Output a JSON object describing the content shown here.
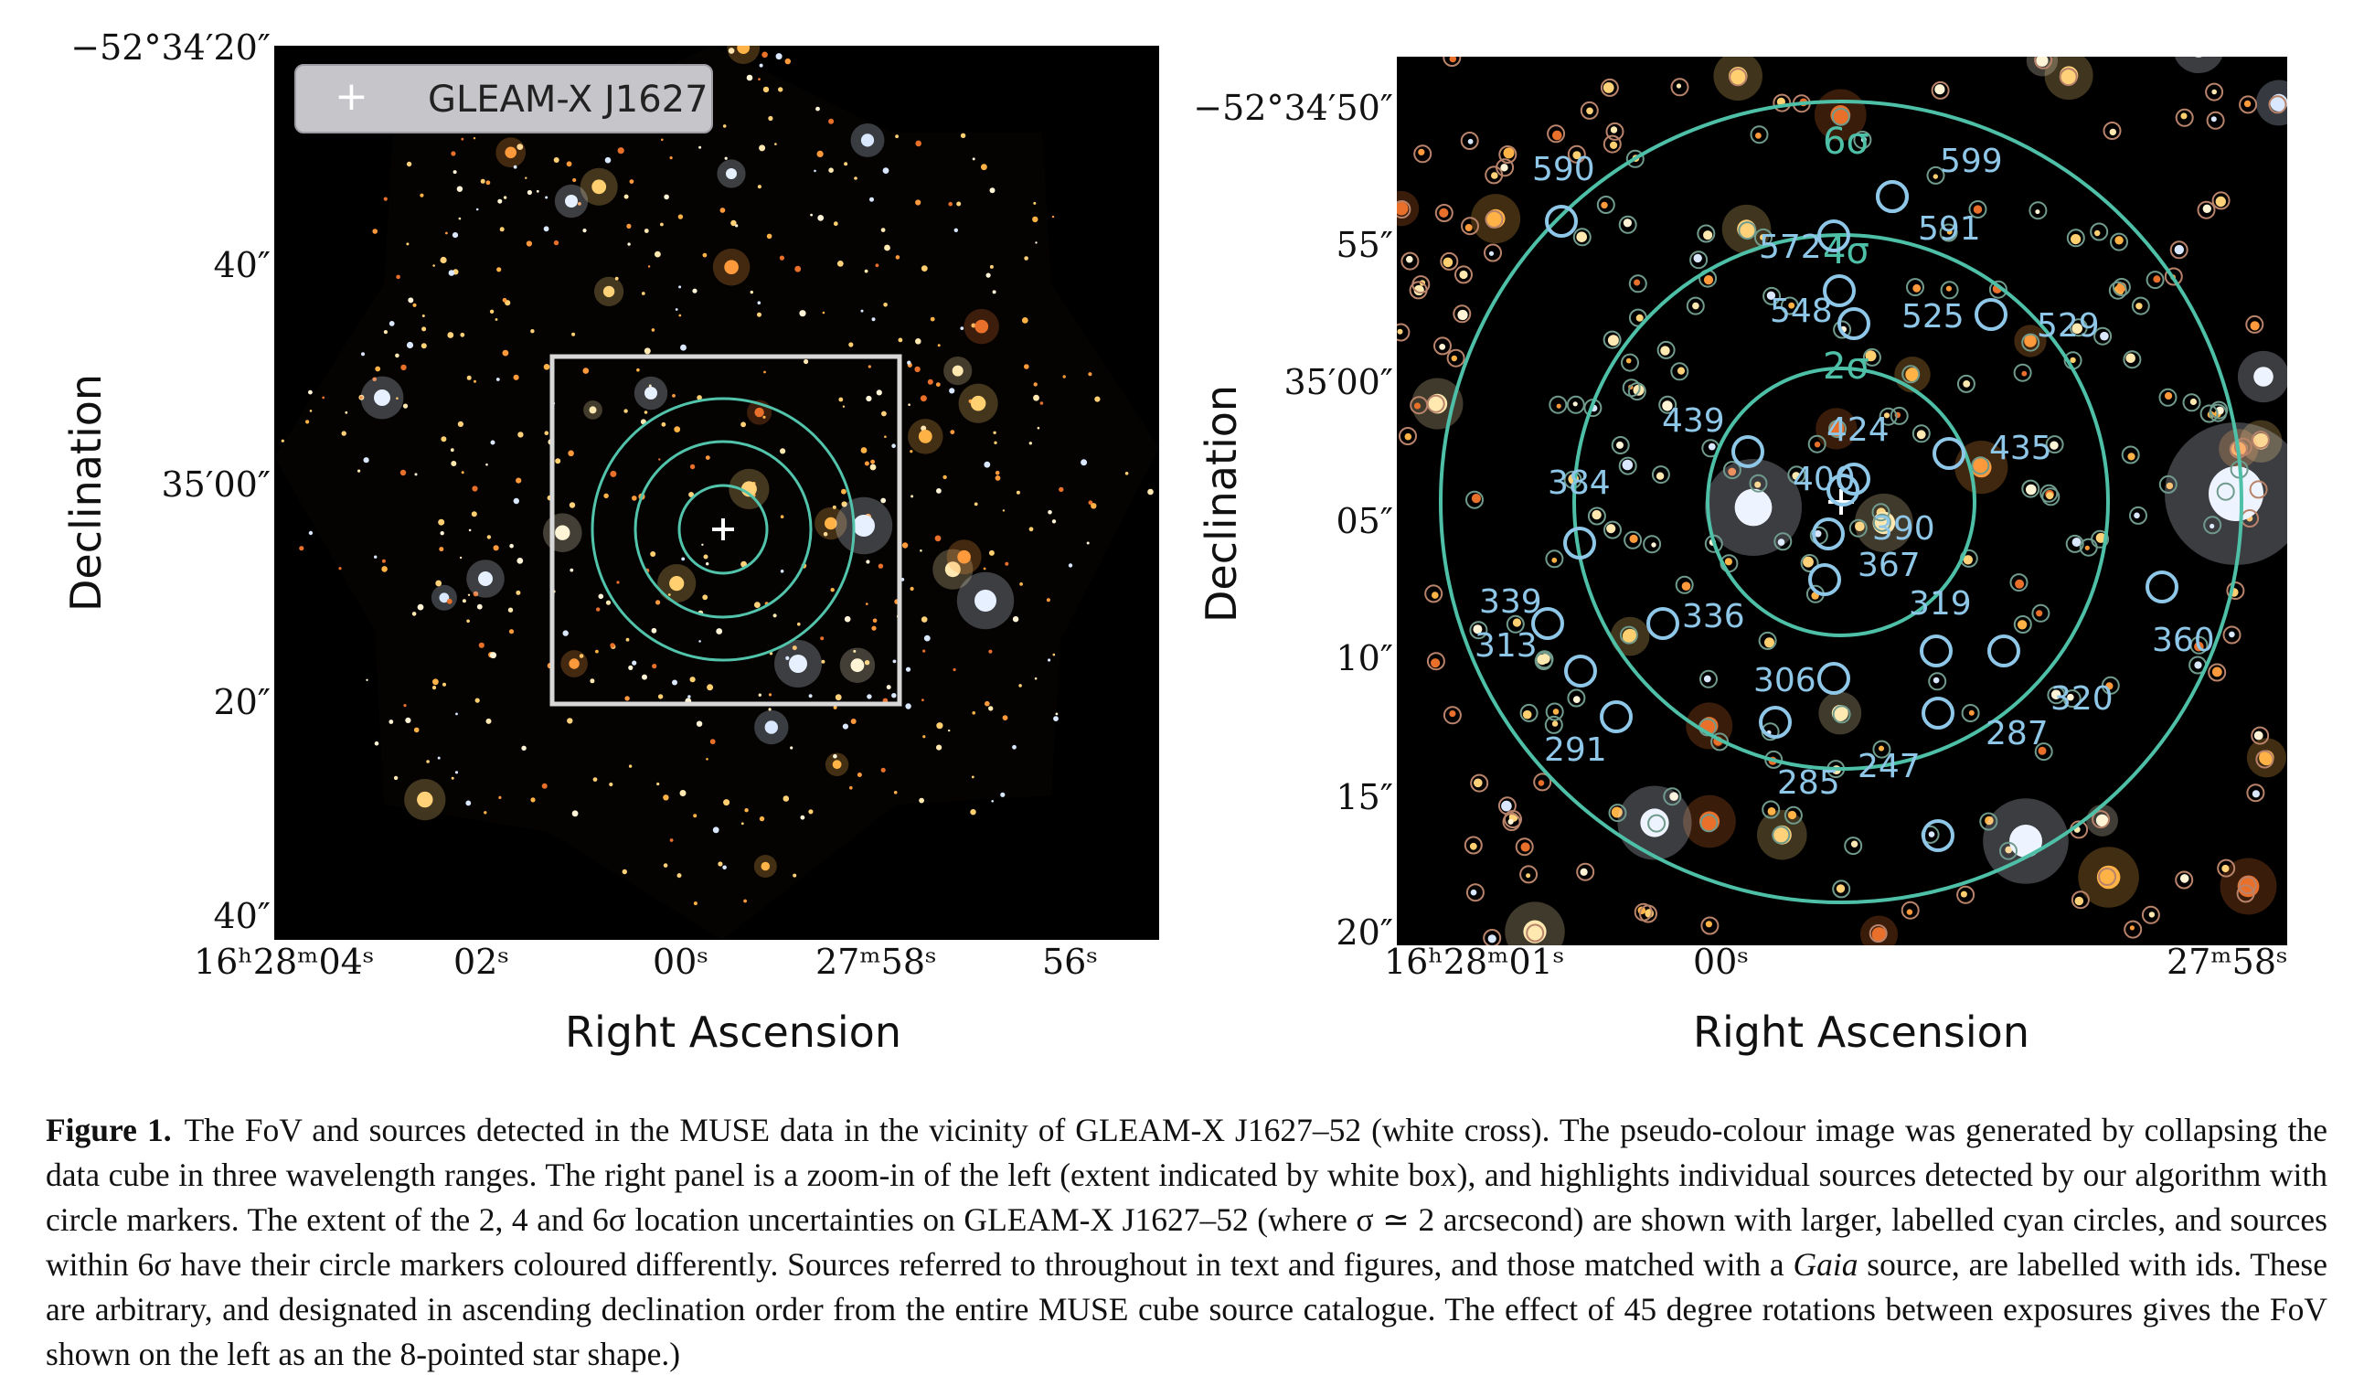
{
  "left_panel": {
    "legend_label": "GLEAM-X J1627",
    "y_axis_title": "Declination",
    "x_axis_title": "Right Ascension",
    "y_ticks": [
      {
        "label": "−52°34′20″",
        "dec_offset_arcsec": -40
      },
      {
        "label": "40″",
        "dec_offset_arcsec": -20
      },
      {
        "label": "35′00″",
        "dec_offset_arcsec": 0
      },
      {
        "label": "20″",
        "dec_offset_arcsec": 20
      },
      {
        "label": "40″",
        "dec_offset_arcsec": 40
      }
    ],
    "x_ticks": [
      {
        "label": "16ʰ28ᵐ04ˢ",
        "ra_sec": 4
      },
      {
        "label": "02ˢ",
        "ra_sec": 2
      },
      {
        "label": "00ˢ",
        "ra_sec": 0
      },
      {
        "label": "27ᵐ58ˢ",
        "ra_sec": -2
      },
      {
        "label": "56ˢ",
        "ra_sec": -4
      }
    ]
  },
  "right_panel": {
    "y_axis_title": "Declination",
    "x_axis_title": "Right Ascension",
    "y_ticks": [
      {
        "label": "−52°34′50″",
        "dec_offset_arcsec": -10
      },
      {
        "label": "55″",
        "dec_offset_arcsec": -5
      },
      {
        "label": "35′00″",
        "dec_offset_arcsec": 0
      },
      {
        "label": "05″",
        "dec_offset_arcsec": 5
      },
      {
        "label": "10″",
        "dec_offset_arcsec": 10
      },
      {
        "label": "15″",
        "dec_offset_arcsec": 15
      },
      {
        "label": "20″",
        "dec_offset_arcsec": 20
      }
    ],
    "x_ticks": [
      {
        "label": "16ʰ28ᵐ01ˢ",
        "ra_sec": 1
      },
      {
        "label": "00ˢ",
        "ra_sec": 0
      },
      {
        "label": "27ᵐ58ˢ",
        "ra_sec": -2
      }
    ],
    "sigma_labels": [
      "2σ",
      "4σ",
      "6σ"
    ],
    "source_ids": [
      "590",
      "599",
      "591",
      "572",
      "548",
      "525",
      "529",
      "439",
      "424",
      "435",
      "384",
      "400",
      "390",
      "367",
      "339",
      "336",
      "313",
      "319",
      "360",
      "306",
      "320",
      "287",
      "291",
      "247",
      "285"
    ]
  },
  "caption": {
    "lead": "Figure 1.",
    "text_1": "The FoV and sources detected in the MUSE data in the vicinity of GLEAM-X J1627–52 (white cross). The pseudo-colour image was generated by collapsing the data cube in three wavelength ranges. The right panel is a zoom-in of the left (extent indicated by white box), and highlights individual sources detected by our algorithm with circle markers. The extent of the 2, 4 and 6σ location uncertainties on GLEAM-X J1627–52 (where σ ≃ 2 arcsecond) are shown with larger, labelled cyan circles, and sources within 6σ have their circle markers coloured differently. Sources referred to throughout in text and figures, and those matched with a ",
    "italic": "Gaia",
    "text_2": " source, are labelled with ids. These are arbitrary, and designated in ascending declination order from the entire MUSE cube source catalogue. The effect of 45 degree rotations between exposures gives the FoV shown on the left as an the 8-pointed star shape.)"
  }
}
